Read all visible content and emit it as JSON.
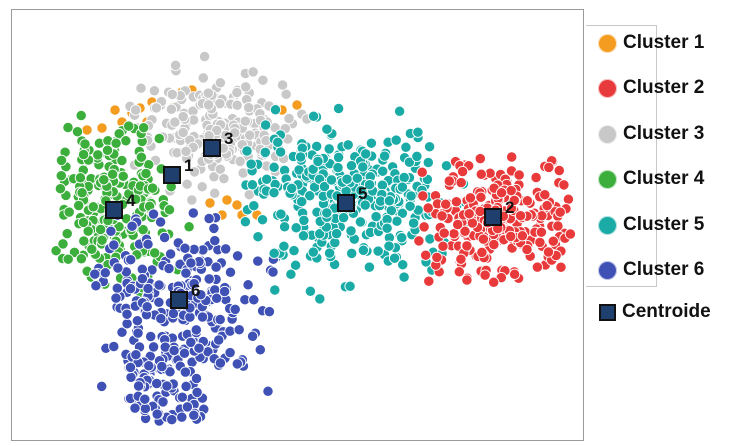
{
  "chart_data": {
    "type": "scatter",
    "title": "",
    "xlabel": "",
    "ylabel": "",
    "grid": false,
    "legend_position": "right",
    "series": [
      {
        "name": "Cluster 1",
        "color": "#f39c1f",
        "points": [
          [
            103,
            100
          ],
          [
            120,
            103
          ],
          [
            110,
            112
          ],
          [
            128,
            98
          ],
          [
            160,
            98
          ],
          [
            170,
            82
          ],
          [
            180,
            80
          ],
          [
            285,
            95
          ],
          [
            270,
            100
          ],
          [
            215,
            190
          ],
          [
            225,
            195
          ],
          [
            230,
            205
          ],
          [
            210,
            205
          ],
          [
            245,
            205
          ],
          [
            198,
            193
          ],
          [
            75,
            120
          ],
          [
            90,
            118
          ],
          [
            135,
            112
          ],
          [
            140,
            92
          ]
        ]
      },
      {
        "name": "Cluster 2",
        "color": "#e8393b",
        "points": []
      },
      {
        "name": "Cluster 3",
        "color": "#c8c8c8",
        "points": []
      },
      {
        "name": "Cluster 4",
        "color": "#3cae3c",
        "points": []
      },
      {
        "name": "Cluster 5",
        "color": "#1aaba6",
        "points": []
      },
      {
        "name": "Cluster 6",
        "color": "#3f51b5",
        "points": []
      }
    ],
    "centroids": [
      {
        "label": "1",
        "x": 160,
        "y": 165
      },
      {
        "label": "2",
        "x": 481,
        "y": 207
      },
      {
        "label": "3",
        "x": 200,
        "y": 138
      },
      {
        "label": "4",
        "x": 102,
        "y": 200
      },
      {
        "label": "5",
        "x": 334,
        "y": 193
      },
      {
        "label": "6",
        "x": 167,
        "y": 290
      }
    ],
    "centroid_legend": "Centroide"
  },
  "legend": {
    "items": [
      {
        "label": "Cluster 1",
        "color": "#f39c1f"
      },
      {
        "label": "Cluster 2",
        "color": "#e8393b"
      },
      {
        "label": "Cluster 3",
        "color": "#c8c8c8"
      },
      {
        "label": "Cluster 4",
        "color": "#3cae3c"
      },
      {
        "label": "Cluster 5",
        "color": "#1aaba6"
      },
      {
        "label": "Cluster 6",
        "color": "#3f51b5"
      }
    ],
    "centroid_label": "Centroide",
    "centroid_color": "#1f3f6e"
  }
}
